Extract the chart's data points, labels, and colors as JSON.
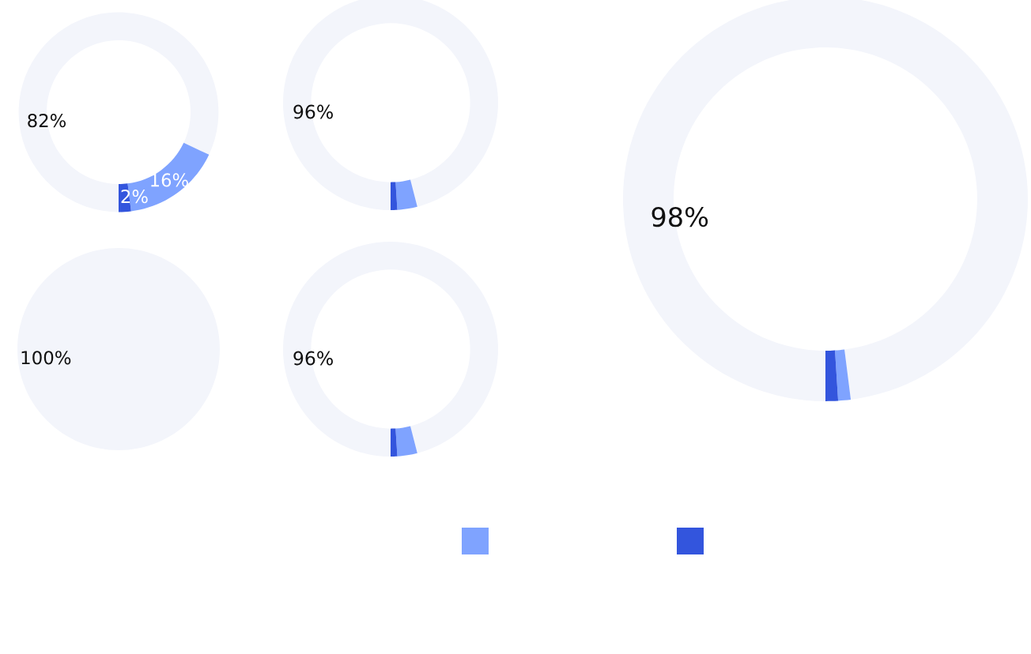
{
  "chart_data": [
    {
      "type": "donut",
      "categories": [
        null,
        null,
        null
      ],
      "values": [
        82,
        16,
        2
      ],
      "colors": [
        "#f3f5fb",
        "#7fa3ff",
        "#3355dd"
      ],
      "value_labels": [
        "82%",
        "16%",
        "2%"
      ]
    },
    {
      "type": "donut",
      "categories": [
        null,
        null,
        null
      ],
      "values": [
        96,
        3,
        1
      ],
      "colors": [
        "#f3f5fb",
        "#7fa3ff",
        "#3355dd"
      ],
      "value_labels": [
        "96%",
        null,
        null
      ]
    },
    {
      "type": "donut",
      "categories": [
        null,
        null,
        null
      ],
      "values": [
        98,
        1,
        1
      ],
      "colors": [
        "#f3f5fb",
        "#7fa3ff",
        "#3355dd"
      ],
      "value_labels": [
        "98%",
        null,
        null
      ]
    },
    {
      "type": "pie",
      "categories": [
        null,
        null,
        null
      ],
      "values": [
        100,
        0,
        0
      ],
      "colors": [
        "#f3f5fb",
        "#7fa3ff",
        "#3355dd"
      ],
      "value_labels": [
        "100%",
        null,
        null
      ]
    },
    {
      "type": "donut",
      "categories": [
        null,
        null,
        null
      ],
      "values": [
        96,
        3,
        1
      ],
      "colors": [
        "#f3f5fb",
        "#7fa3ff",
        "#3355dd"
      ],
      "value_labels": [
        "96%",
        null,
        null
      ]
    }
  ]
}
